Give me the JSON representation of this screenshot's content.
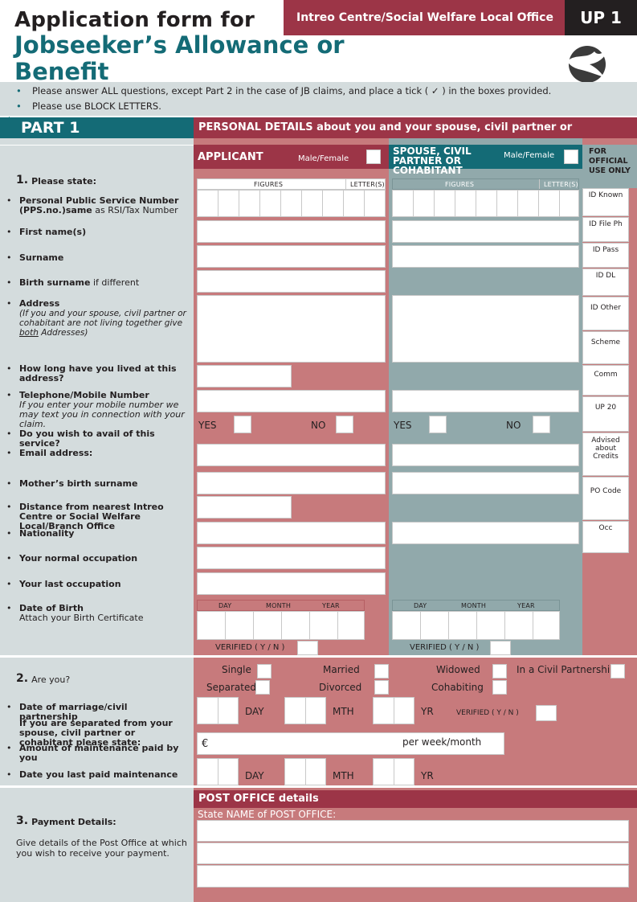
{
  "header": {
    "title_line1": "Application form for",
    "title_line2": "Jobseeker’s Allowance or Benefit",
    "office_label": "Intreo Centre/Social Welfare Local Office",
    "form_code": "UP 1"
  },
  "instructions": [
    "Please answer ALL questions, except Part 2 in the case of JB claims, and place a tick ( ✓ ) in the boxes provided.",
    "Please use BLOCK LETTERS."
  ],
  "part1": {
    "label": "PART 1",
    "heading": "PERSONAL DETAILS about you and your spouse, civil partner or cohabitant",
    "applicant_label": "APPLICANT",
    "spouse_label": "SPOUSE, CIVIL PARTNER OR COHABITANT",
    "male_female": "Male/Female",
    "official_use": "FOR OFFICIAL USE ONLY",
    "figures": "FIGURES",
    "letters": "LETTER(S)",
    "day": "DAY",
    "month": "MONTH",
    "year": "YEAR",
    "verified": "VERIFIED ( Y / N )",
    "yes": "YES",
    "no": "NO"
  },
  "questions": {
    "q1_num": "1.",
    "q1_title": "Please state:",
    "pps_bold": "Personal Public Service Number (PPS.no.)same",
    "pps_rest": "as RSI/Tax Number",
    "first_name": "First name(s)",
    "surname": "Surname",
    "birth_surname_bold": "Birth surname",
    "birth_surname_rest": "if different",
    "address": "Address",
    "address_note1": "(If you and your spouse, civil partner or cohabitant are not living together give ",
    "address_note_both": "both",
    "address_note2": " Addresses)",
    "how_long": "How long have you lived at this address?",
    "telephone": "Telephone/Mobile Number",
    "telephone_note": "If you enter your mobile number we may text you in connection with your claim.",
    "avail": "Do you wish to avail of this service?",
    "email": "Email address:",
    "mother": "Mother’s birth surname",
    "distance": "Distance from nearest Intreo Centre or Social Welfare Local/Branch Office",
    "nationality": "Nationality",
    "normal_occ": "Your normal occupation",
    "last_occ": "Your last occupation",
    "dob": "Date of Birth",
    "dob_note": "Attach your Birth Certificate",
    "q2_num": "2.",
    "q2_title": "Are you?",
    "marriage_date": "Date of marriage/civil partnership",
    "separated_note": "If you are separated from your spouse, civil partner or cohabitant please state:",
    "maintenance_amount": "Amount of maintenance paid by you",
    "maintenance_date": "Date you last paid maintenance",
    "q3_num": "3.",
    "q3_title": "Payment Details:",
    "q3_note": "Give details of the Post Office at which you wish to receive your payment."
  },
  "marital": {
    "single": "Single",
    "married": "Married",
    "widowed": "Widowed",
    "civil": "In a Civil Partnership",
    "separated": "Separated",
    "divorced": "Divorced",
    "cohabiting": "Cohabiting"
  },
  "date_labels": {
    "day": "DAY",
    "mth": "MTH",
    "yr": "YR",
    "verified": "VERIFIED ( Y / N )"
  },
  "maintenance": {
    "currency": "€",
    "per": "per week/month"
  },
  "post_office": {
    "heading": "POST OFFICE details",
    "name_label": "State NAME of POST OFFICE:"
  },
  "official": [
    "ID Known",
    "ID File Ph",
    "ID Pass",
    "ID DL",
    "ID Other",
    "Scheme",
    "Comm",
    "UP 20",
    "Advised about Credits",
    "PO Code",
    "Occ"
  ],
  "colors": {
    "teal": "#146b76",
    "maroon": "#9c3547",
    "pink": "#c77a7c",
    "grey_teal": "#91a9ab",
    "light_grey": "#d4dcdd"
  }
}
